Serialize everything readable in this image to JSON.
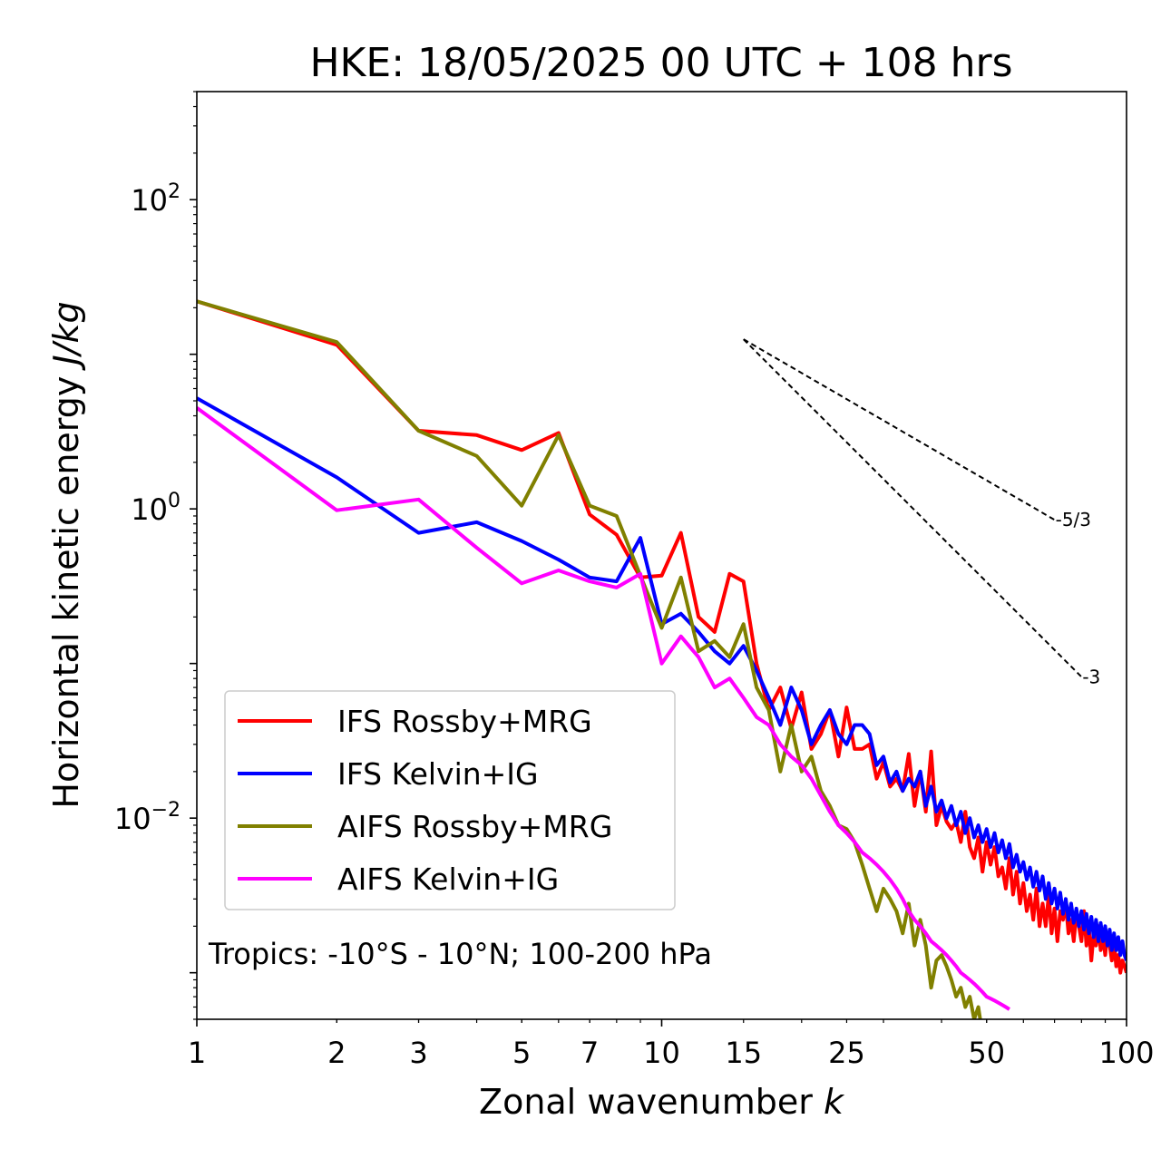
{
  "chart_data": {
    "type": "line",
    "title": "HKE: 18/05/2025 00 UTC + 108 hrs",
    "xlabel": "Zonal wavenumber ",
    "xlabel_italic": "k",
    "ylabel": "Horizontal kinetic energy ",
    "ylabel_italic": "J/kg",
    "xscale": "log",
    "yscale": "log",
    "xlim": [
      1,
      100
    ],
    "ylim": [
      0.0005,
      500
    ],
    "x_ticks": [
      1,
      2,
      3,
      5,
      7,
      10,
      15,
      25,
      50,
      100
    ],
    "x_tick_labels": [
      "1",
      "2",
      "3",
      "5",
      "7",
      "10",
      "15",
      "25",
      "50",
      "100"
    ],
    "y_ticks": [
      {
        "value": 100,
        "base": "10",
        "exp": "2"
      },
      {
        "value": 1,
        "base": "10",
        "exp": "0"
      },
      {
        "value": 0.01,
        "base": "10",
        "exp": "−2"
      }
    ],
    "grid": false,
    "legend_position": "lower-left",
    "annotation": "Tropics: -10°S - 10°N; 100-200 hPa",
    "reference_lines": [
      {
        "label": "-5/3",
        "slope": -1.6667,
        "x": [
          15,
          70
        ],
        "y": [
          12.5,
          0.85
        ]
      },
      {
        "label": "-3",
        "slope": -3,
        "x": [
          15,
          80
        ],
        "y": [
          12.5,
          0.082
        ]
      }
    ],
    "series": [
      {
        "name": "IFS Rossby+MRG",
        "color": "#ff0000",
        "x": [
          1,
          2,
          3,
          4,
          5,
          6,
          7,
          8,
          9,
          10,
          11,
          12,
          13,
          14,
          15,
          16,
          17,
          18,
          19,
          20,
          21,
          22,
          23,
          24,
          25,
          26,
          27,
          28,
          29,
          30,
          31,
          32,
          33,
          34,
          35,
          36,
          37,
          38,
          39,
          40,
          41,
          42,
          43,
          44,
          45,
          46,
          47,
          48,
          49,
          50,
          51,
          52,
          53,
          54,
          55,
          56,
          57,
          58,
          59,
          60,
          61,
          62,
          63,
          64,
          65,
          66,
          67,
          68,
          69,
          70,
          71,
          72,
          73,
          74,
          75,
          76,
          77,
          78,
          79,
          80,
          81,
          82,
          83,
          84,
          85,
          86,
          87,
          88,
          89,
          90,
          91,
          92,
          93,
          94,
          95,
          96,
          97,
          98,
          99,
          100
        ],
        "values": [
          22,
          11.5,
          3.2,
          3,
          2.4,
          3.1,
          0.92,
          0.68,
          0.36,
          0.37,
          0.7,
          0.2,
          0.16,
          0.38,
          0.34,
          0.1,
          0.05,
          0.07,
          0.038,
          0.065,
          0.028,
          0.035,
          0.05,
          0.025,
          0.052,
          0.028,
          0.028,
          0.03,
          0.018,
          0.023,
          0.016,
          0.018,
          0.015,
          0.026,
          0.012,
          0.02,
          0.011,
          0.027,
          0.009,
          0.012,
          0.0095,
          0.0085,
          0.0095,
          0.007,
          0.011,
          0.0065,
          0.0055,
          0.0075,
          0.0045,
          0.007,
          0.005,
          0.0065,
          0.0042,
          0.0048,
          0.0035,
          0.0055,
          0.0032,
          0.0045,
          0.0028,
          0.0038,
          0.0025,
          0.0032,
          0.0022,
          0.0035,
          0.002,
          0.0028,
          0.002,
          0.0032,
          0.0018,
          0.0026,
          0.0016,
          0.0025,
          0.0022,
          0.0028,
          0.0018,
          0.0022,
          0.0016,
          0.0024,
          0.002,
          0.0016,
          0.0025,
          0.0015,
          0.002,
          0.0012,
          0.0018,
          0.0015,
          0.002,
          0.0014,
          0.0017,
          0.0013,
          0.0018,
          0.0015,
          0.0012,
          0.0016,
          0.0011,
          0.0013,
          0.001,
          0.0012,
          0.0011,
          0.001
        ]
      },
      {
        "name": "IFS Kelvin+IG",
        "color": "#0000ff",
        "x": [
          1,
          2,
          3,
          4,
          5,
          6,
          7,
          8,
          9,
          10,
          11,
          12,
          13,
          14,
          15,
          16,
          17,
          18,
          19,
          20,
          21,
          22,
          23,
          24,
          25,
          26,
          27,
          28,
          29,
          30,
          31,
          32,
          33,
          34,
          35,
          36,
          37,
          38,
          39,
          40,
          41,
          42,
          43,
          44,
          45,
          46,
          47,
          48,
          49,
          50,
          51,
          52,
          53,
          54,
          55,
          56,
          57,
          58,
          59,
          60,
          61,
          62,
          63,
          64,
          65,
          66,
          67,
          68,
          69,
          70,
          71,
          72,
          73,
          74,
          75,
          76,
          77,
          78,
          79,
          80,
          81,
          82,
          83,
          84,
          85,
          86,
          87,
          88,
          89,
          90,
          91,
          92,
          93,
          94,
          95,
          96,
          97,
          98,
          99,
          100
        ],
        "values": [
          5.2,
          1.6,
          0.7,
          0.82,
          0.62,
          0.47,
          0.36,
          0.34,
          0.65,
          0.18,
          0.21,
          0.16,
          0.12,
          0.1,
          0.13,
          0.09,
          0.06,
          0.04,
          0.07,
          0.05,
          0.03,
          0.04,
          0.05,
          0.035,
          0.03,
          0.04,
          0.04,
          0.035,
          0.022,
          0.025,
          0.017,
          0.02,
          0.015,
          0.018,
          0.016,
          0.02,
          0.012,
          0.016,
          0.011,
          0.013,
          0.01,
          0.012,
          0.009,
          0.011,
          0.008,
          0.01,
          0.0075,
          0.009,
          0.007,
          0.0085,
          0.0065,
          0.008,
          0.006,
          0.0072,
          0.0055,
          0.0068,
          0.0048,
          0.0058,
          0.0045,
          0.0052,
          0.004,
          0.0048,
          0.0036,
          0.0045,
          0.0034,
          0.0042,
          0.003,
          0.0038,
          0.0028,
          0.0035,
          0.0026,
          0.0033,
          0.0024,
          0.003,
          0.0022,
          0.0028,
          0.0021,
          0.0026,
          0.002,
          0.0025,
          0.0019,
          0.0024,
          0.0018,
          0.0023,
          0.0017,
          0.0022,
          0.0016,
          0.0021,
          0.0016,
          0.002,
          0.0015,
          0.0019,
          0.0014,
          0.0018,
          0.0014,
          0.0017,
          0.0013,
          0.0016,
          0.0013,
          0.0012
        ]
      },
      {
        "name": "AIFS Rossby+MRG",
        "color": "#808000",
        "x": [
          1,
          2,
          3,
          4,
          5,
          6,
          7,
          8,
          9,
          10,
          11,
          12,
          13,
          14,
          15,
          16,
          17,
          18,
          19,
          20,
          21,
          22,
          23,
          24,
          25,
          26,
          27,
          28,
          29,
          30,
          31,
          32,
          33,
          34,
          35,
          36,
          37,
          38,
          39,
          40,
          41,
          42,
          43,
          44,
          45,
          46,
          47,
          48,
          49,
          50
        ],
        "values": [
          22,
          12,
          3.2,
          2.2,
          1.05,
          3.0,
          1.05,
          0.9,
          0.37,
          0.17,
          0.36,
          0.12,
          0.14,
          0.11,
          0.18,
          0.07,
          0.05,
          0.02,
          0.04,
          0.02,
          0.025,
          0.015,
          0.012,
          0.009,
          0.0085,
          0.007,
          0.005,
          0.0035,
          0.0025,
          0.0035,
          0.003,
          0.0025,
          0.0018,
          0.0028,
          0.0015,
          0.0022,
          0.0015,
          0.0008,
          0.0012,
          0.0013,
          0.0011,
          0.0009,
          0.0007,
          0.0008,
          0.0006,
          0.0007,
          0.0005,
          0.0006,
          0.0004,
          0.0003
        ]
      },
      {
        "name": "AIFS Kelvin+IG",
        "color": "#ff00ff",
        "x": [
          1,
          2,
          3,
          4,
          5,
          6,
          7,
          8,
          9,
          10,
          11,
          12,
          13,
          14,
          15,
          16,
          17,
          18,
          19,
          20,
          21,
          22,
          23,
          24,
          25,
          26,
          27,
          28,
          29,
          30,
          31,
          32,
          33,
          34,
          35,
          36,
          37,
          38,
          39,
          40,
          41,
          42,
          43,
          44,
          45,
          46,
          47,
          48,
          49,
          50,
          51,
          52,
          53,
          54,
          55,
          56
        ],
        "values": [
          4.5,
          0.98,
          1.15,
          0.56,
          0.33,
          0.4,
          0.34,
          0.31,
          0.38,
          0.1,
          0.15,
          0.11,
          0.07,
          0.08,
          0.06,
          0.045,
          0.04,
          0.03,
          0.025,
          0.022,
          0.018,
          0.014,
          0.011,
          0.009,
          0.008,
          0.007,
          0.006,
          0.0055,
          0.005,
          0.0045,
          0.004,
          0.0035,
          0.003,
          0.0025,
          0.0022,
          0.002,
          0.0018,
          0.0016,
          0.0015,
          0.0014,
          0.0013,
          0.0012,
          0.0011,
          0.001,
          0.00095,
          0.0009,
          0.00085,
          0.0008,
          0.00075,
          0.0007,
          0.00068,
          0.00066,
          0.00064,
          0.00062,
          0.0006,
          0.00058
        ]
      }
    ]
  }
}
